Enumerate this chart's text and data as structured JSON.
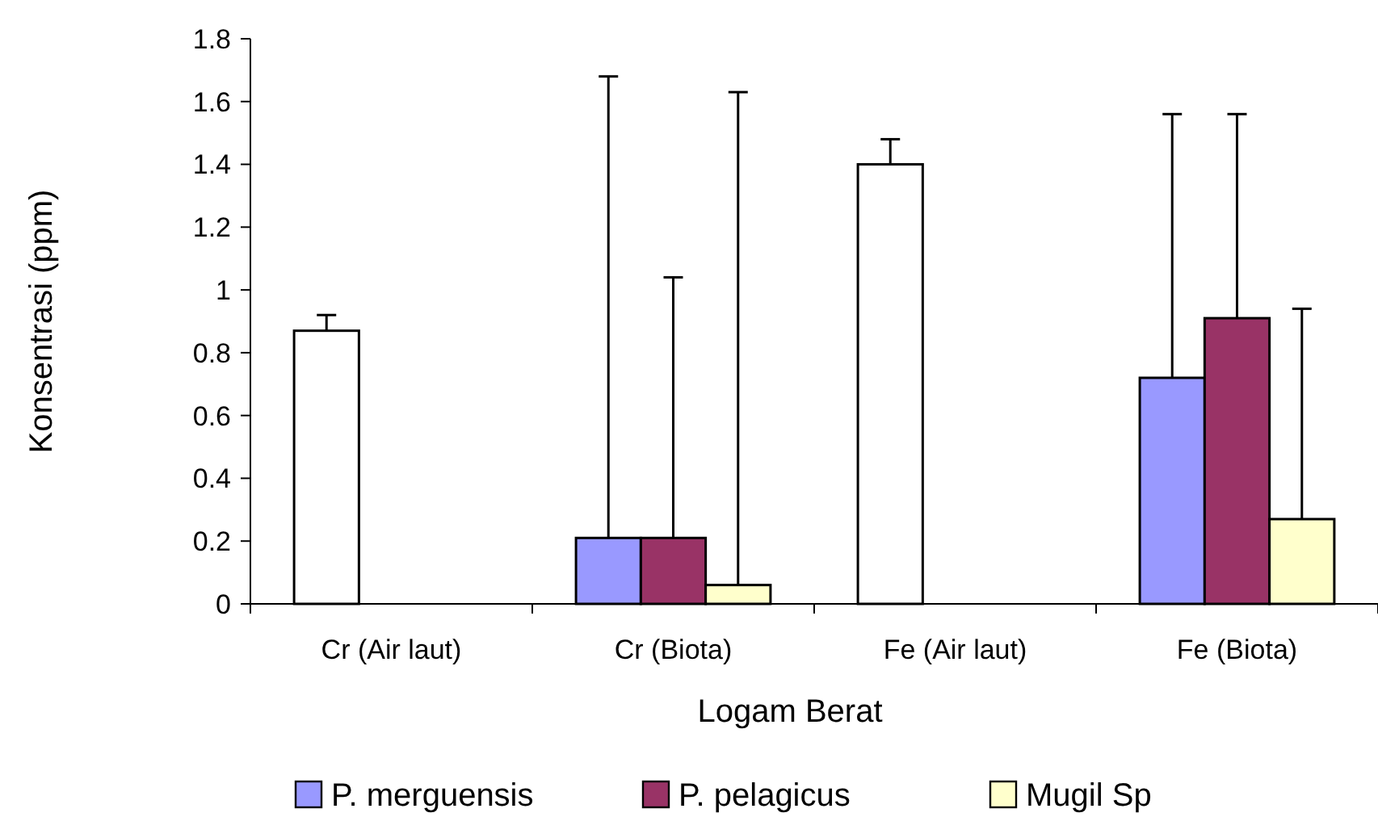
{
  "chart_data": {
    "type": "bar",
    "xlabel": "Logam Berat",
    "ylabel": "Konsentrasi (ppm)",
    "categories": [
      "Cr (Air laut)",
      "Cr (Biota)",
      "Fe (Air laut)",
      "Fe (Biota)"
    ],
    "series": [
      {
        "name": "P. merguensis",
        "color": "#9999ff",
        "colors": [
          "#ffffff",
          "#9999ff",
          "#ffffff",
          "#9999ff"
        ],
        "values": [
          0.87,
          0.21,
          1.4,
          0.72
        ],
        "errors": [
          [
            0.87,
            0.92
          ],
          [
            0.21,
            1.68
          ],
          [
            1.4,
            1.48
          ],
          [
            0.72,
            1.56
          ]
        ]
      },
      {
        "name": "P. pelagicus",
        "color": "#993366",
        "values": [
          null,
          0.21,
          null,
          0.91
        ],
        "errors": [
          null,
          [
            0.21,
            1.04
          ],
          null,
          [
            0.91,
            1.56
          ]
        ]
      },
      {
        "name": "Mugil Sp",
        "color": "#ffffcc",
        "values": [
          null,
          0.06,
          null,
          0.27
        ],
        "errors": [
          null,
          [
            0.06,
            1.63
          ],
          null,
          [
            0.27,
            0.94
          ]
        ]
      }
    ],
    "ylim": [
      0,
      1.8
    ],
    "yticks": [
      0,
      0.2,
      0.4,
      0.6,
      0.8,
      1,
      1.2,
      1.4,
      1.6,
      1.8
    ],
    "grid": false,
    "legend": "bottom"
  }
}
